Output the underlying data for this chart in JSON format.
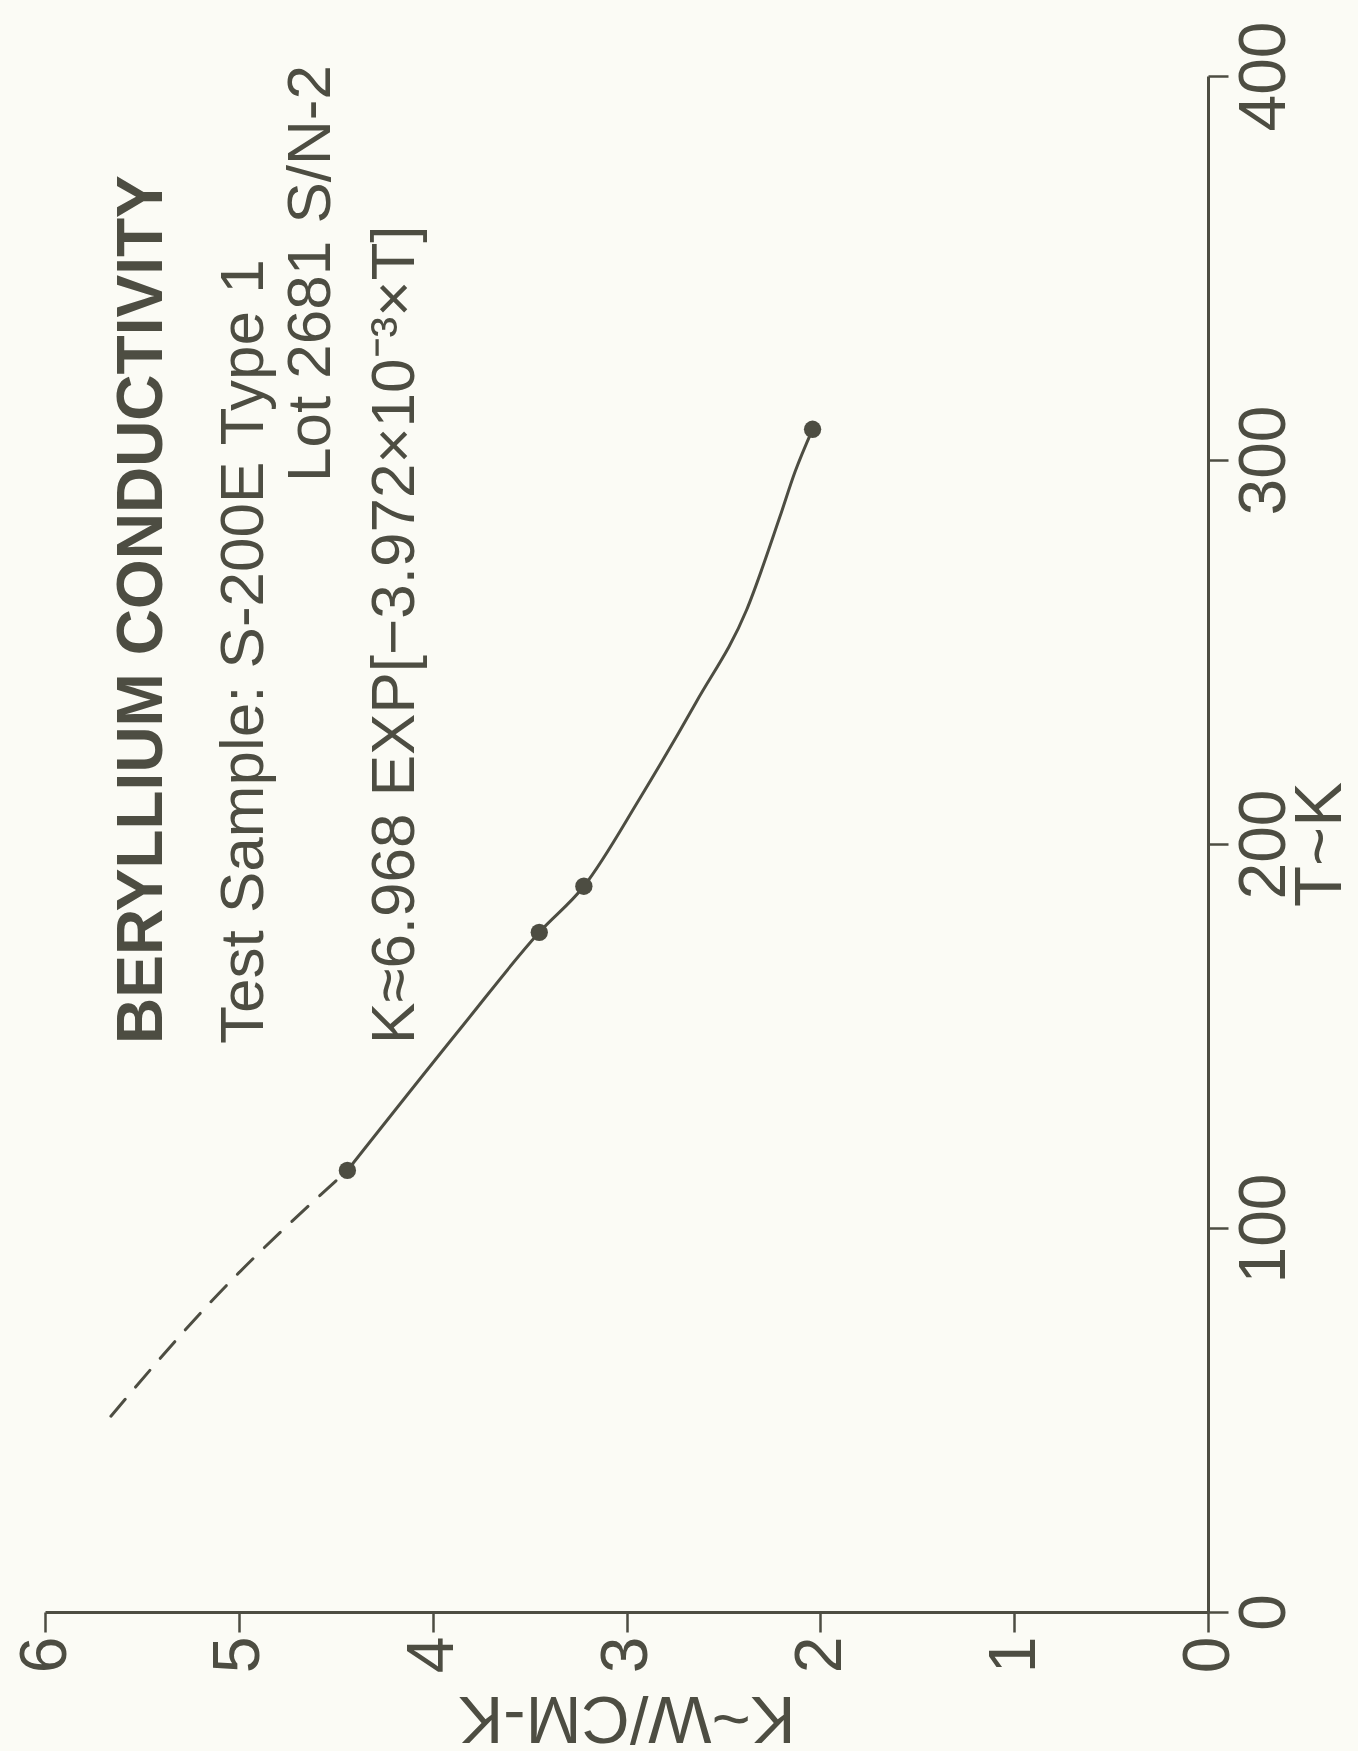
{
  "chart_data": {
    "type": "line",
    "title": "BERYLLIUM CONDUCTIVITY",
    "annotations": [
      "Test Sample: S-200E Type 1",
      "Lot 2681 S/N-2",
      "K≈6.968 EXP[−3.972×10⁻³×T]"
    ],
    "xlabel": "K~W/CM-K",
    "ylabel": "T~K",
    "xlim": [
      6,
      0
    ],
    "xticks": [
      0,
      1,
      2,
      3,
      4,
      5,
      6
    ],
    "ylim": [
      0,
      400
    ],
    "yticks": [
      0,
      100,
      200,
      300,
      400
    ],
    "grid": false,
    "series": [
      {
        "line_style": "solid",
        "color": "#4d4d42",
        "x": [
          4.44,
          3.84,
          3.45,
          3.22,
          2.93,
          2.64,
          2.38,
          2.21,
          2.13,
          2.04
        ],
        "values": [
          115,
          153,
          177,
          189,
          212,
          237,
          261,
          285,
          297,
          308
        ]
      },
      {
        "line_style": "dashed",
        "color": "#4d4d42",
        "x": [
          5.66,
          5.14,
          4.44
        ],
        "values": [
          51,
          81,
          115
        ]
      },
      {
        "type": "scatter",
        "marker": "circle",
        "color": "#4d4d42",
        "x": [
          4.44,
          3.45,
          3.22,
          2.04
        ],
        "values": [
          115,
          177,
          189,
          308
        ]
      }
    ]
  }
}
